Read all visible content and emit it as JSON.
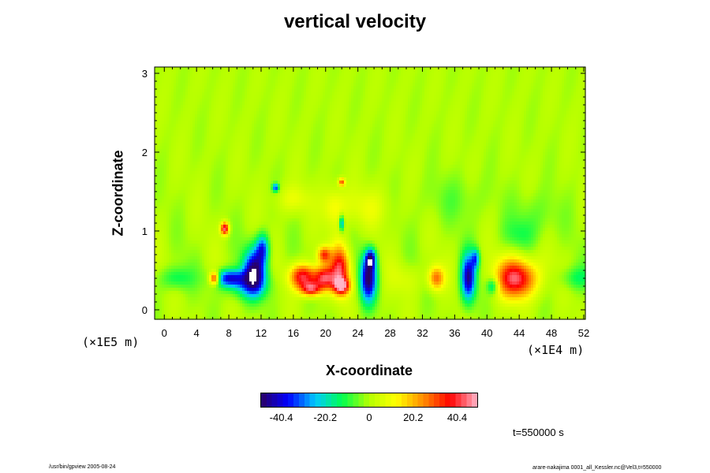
{
  "chart_data": {
    "type": "heatmap",
    "title": "vertical velocity",
    "xlabel": "X-coordinate",
    "ylabel": "Z-coordinate",
    "x_unit_label": "(×1E4 m)",
    "y_unit_label": "(×1E5 m)",
    "x_ticks": [
      0,
      4,
      8,
      12,
      16,
      20,
      24,
      28,
      32,
      36,
      40,
      44,
      48,
      52
    ],
    "y_ticks": [
      0,
      1,
      2,
      3
    ],
    "xlim": [
      -1.2,
      52.2
    ],
    "ylim": [
      -0.12,
      3.08
    ],
    "colorbar": {
      "ticks": [
        "-40.4",
        "-20.2",
        "0",
        "20.2",
        "40.4"
      ],
      "range": [
        -50,
        50
      ],
      "colors": [
        "#2a0064",
        "#0000ff",
        "#00c8ff",
        "#00ff50",
        "#b4ff00",
        "#ffff00",
        "#ff8c00",
        "#ff0000",
        "#ffb4c8"
      ]
    },
    "features": [
      {
        "x": 8.0,
        "z": 0.4,
        "rx": 1.8,
        "rz": 0.11,
        "w": -35
      },
      {
        "x": 11.2,
        "z": 0.5,
        "rx": 1.4,
        "rz": 0.28,
        "w": -45
      },
      {
        "x": 12.2,
        "z": 0.78,
        "rx": 0.8,
        "rz": 0.18,
        "w": -30
      },
      {
        "x": 10.2,
        "z": 0.32,
        "rx": 2.5,
        "rz": 0.18,
        "w": -20
      },
      {
        "x": 6.2,
        "z": 0.4,
        "rx": 0.6,
        "rz": 0.08,
        "w": 40
      },
      {
        "x": 7.5,
        "z": 1.03,
        "rx": 0.5,
        "rz": 0.08,
        "w": 45
      },
      {
        "x": 17.2,
        "z": 0.42,
        "rx": 1.6,
        "rz": 0.16,
        "w": 42
      },
      {
        "x": 19.8,
        "z": 0.4,
        "rx": 1.3,
        "rz": 0.15,
        "w": 38
      },
      {
        "x": 21.8,
        "z": 0.52,
        "rx": 1.2,
        "rz": 0.3,
        "w": 40
      },
      {
        "x": 18.2,
        "z": 0.26,
        "rx": 1.2,
        "rz": 0.09,
        "w": 35
      },
      {
        "x": 19.8,
        "z": 0.7,
        "rx": 0.8,
        "rz": 0.1,
        "w": 30
      },
      {
        "x": 22.0,
        "z": 0.3,
        "rx": 1.0,
        "rz": 0.1,
        "w": 35
      },
      {
        "x": 25.3,
        "z": 0.4,
        "rx": 1.0,
        "rz": 0.3,
        "w": -48
      },
      {
        "x": 25.6,
        "z": 0.65,
        "rx": 0.6,
        "rz": 0.12,
        "w": -35
      },
      {
        "x": 33.7,
        "z": 0.4,
        "rx": 1.0,
        "rz": 0.15,
        "w": 28
      },
      {
        "x": 37.7,
        "z": 0.4,
        "rx": 0.9,
        "rz": 0.3,
        "w": -45
      },
      {
        "x": 38.6,
        "z": 0.65,
        "rx": 0.5,
        "rz": 0.12,
        "w": -25
      },
      {
        "x": 43.7,
        "z": 0.4,
        "rx": 2.5,
        "rz": 0.25,
        "w": 44
      },
      {
        "x": 40.7,
        "z": 0.3,
        "rx": 0.7,
        "rz": 0.1,
        "w": -20
      },
      {
        "x": 22.0,
        "z": 1.62,
        "rx": 0.4,
        "rz": 0.05,
        "w": 30
      },
      {
        "x": 13.8,
        "z": 1.55,
        "rx": 0.4,
        "rz": 0.05,
        "w": -35
      },
      {
        "x": 22.0,
        "z": 1.1,
        "rx": 0.3,
        "rz": 0.1,
        "w": -30
      },
      {
        "x": 21.0,
        "z": 1.3,
        "rx": 1.4,
        "rz": 0.25,
        "w": 12
      },
      {
        "x": 16.0,
        "z": 1.4,
        "rx": 2.2,
        "rz": 0.18,
        "w": 9
      },
      {
        "x": 25.0,
        "z": 1.3,
        "rx": 3.0,
        "rz": 0.25,
        "w": 8
      },
      {
        "x": 1.5,
        "z": 0.4,
        "rx": 2.0,
        "rz": 0.15,
        "w": -14
      },
      {
        "x": 51.0,
        "z": 0.4,
        "rx": 2.0,
        "rz": 0.15,
        "w": -12
      },
      {
        "x": 30.0,
        "z": 0.4,
        "rx": 2.0,
        "rz": 0.2,
        "w": 6
      },
      {
        "x": 46.0,
        "z": 1.2,
        "rx": 3.0,
        "rz": 0.3,
        "w": -6
      },
      {
        "x": 36.0,
        "z": 1.4,
        "rx": 4.0,
        "rz": 0.3,
        "w": -5
      },
      {
        "x": 44.0,
        "z": 0.95,
        "rx": 2.2,
        "rz": 0.2,
        "w": -8
      }
    ]
  },
  "timestamp": "t=550000 s",
  "footer_left": "/usr/bin/gpview 2005-08-24",
  "footer_right": "arare-nakajima 0001_all_Kessler.nc@Vel3,t=550000"
}
